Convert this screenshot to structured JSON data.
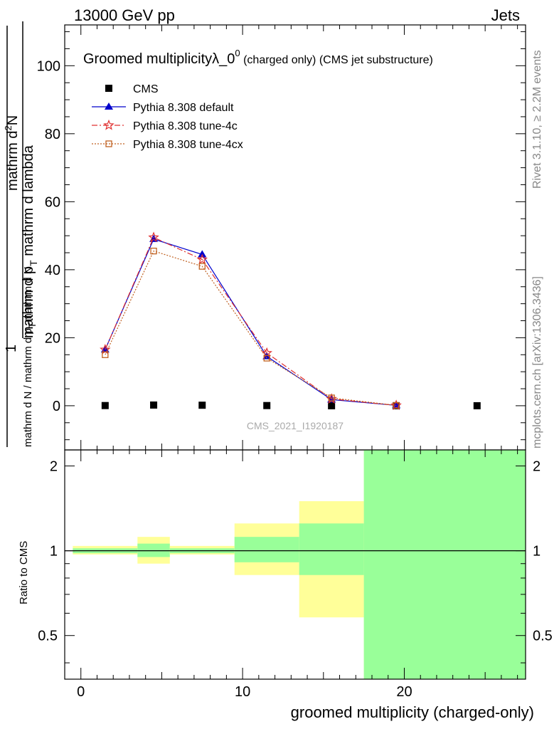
{
  "header": {
    "left": "13000 GeV pp",
    "right": "Jets"
  },
  "side_labels": {
    "top": "Rivet 3.1.10, ≥ 2.2M events",
    "bottom": "mcplots.cern.ch [arXiv:1306.3436]"
  },
  "watermark": "CMS_2021_I1920187",
  "chart_data": [
    {
      "type": "line",
      "title_main": "Groomed multiplicityλ_0",
      "title_sup": "0",
      "title_suffix": " (charged only) (CMS jet substructure)",
      "ylabel_num": "1",
      "ylabel_den": "mathrm d N / mathrm d p",
      "ylabel_den_sub": "T",
      "ylabel_den_end": "mathrm d N",
      "ylabel_2_top": "mathrm d",
      "ylabel_2_sup": "2",
      "ylabel_2_topend": "N",
      "ylabel_2_bot": "mathrm d p",
      "ylabel_2_bot_sub": "T",
      "ylabel_2_botend": " mathrm d lambda",
      "xlim": [
        -1,
        27.5
      ],
      "ylim": [
        -13,
        112
      ],
      "yticks": [
        0,
        20,
        40,
        60,
        80,
        100
      ],
      "series": [
        {
          "name": "CMS",
          "marker": "square",
          "color": "#000000",
          "x": [
            1.5,
            4.5,
            7.5,
            11.5,
            15.5,
            19.5,
            24.5
          ],
          "y": [
            0.05,
            0.2,
            0.15,
            0.05,
            0.0,
            0.0,
            0.0
          ]
        },
        {
          "name": "Pythia 8.308 default",
          "marker": "triangle",
          "color": "#0000cc",
          "dash": "",
          "x": [
            1.5,
            4.5,
            7.5,
            11.5,
            15.5,
            19.5
          ],
          "y": [
            16.5,
            49.0,
            44.5,
            14.5,
            1.8,
            0.1
          ]
        },
        {
          "name": "Pythia 8.308 tune-4c",
          "marker": "star",
          "color": "#e03030",
          "dash": "8,3,2,3",
          "x": [
            1.5,
            4.5,
            7.5,
            11.5,
            15.5,
            19.5
          ],
          "y": [
            16.5,
            49.5,
            43.0,
            15.5,
            2.0,
            0.1
          ]
        },
        {
          "name": "Pythia 8.308 tune-4cx",
          "marker": "open-square",
          "color": "#c06020",
          "dash": "2,2",
          "x": [
            1.5,
            4.5,
            7.5,
            11.5,
            15.5,
            19.5
          ],
          "y": [
            15.0,
            45.5,
            41.0,
            14.0,
            2.3,
            0.1
          ]
        }
      ]
    },
    {
      "type": "area",
      "ylabel": "Ratio to CMS",
      "xlabel": "groomed multiplicity (charged-only)",
      "xlim": [
        -1,
        27.5
      ],
      "ylim": [
        0.35,
        2.28
      ],
      "xticks": [
        0,
        10,
        20
      ],
      "yticks": [
        0.5,
        1,
        2
      ],
      "ytick_labels": [
        "0.5",
        "1",
        "2"
      ],
      "reference_line": 1,
      "bins": [
        {
          "lo": -0.5,
          "hi": 3.5,
          "total": [
            0.97,
            1.04
          ],
          "stat": [
            0.98,
            1.02
          ]
        },
        {
          "lo": 3.5,
          "hi": 5.5,
          "total": [
            0.9,
            1.12
          ],
          "stat": [
            0.95,
            1.06
          ]
        },
        {
          "lo": 5.5,
          "hi": 9.5,
          "total": [
            0.97,
            1.04
          ],
          "stat": [
            0.98,
            1.02
          ]
        },
        {
          "lo": 9.5,
          "hi": 13.5,
          "total": [
            0.82,
            1.25
          ],
          "stat": [
            0.91,
            1.12
          ]
        },
        {
          "lo": 13.5,
          "hi": 17.5,
          "total": [
            0.58,
            1.5
          ],
          "stat": [
            0.82,
            1.25
          ]
        },
        {
          "lo": 17.5,
          "hi": 27.5,
          "total": [
            0.35,
            2.28
          ],
          "stat": [
            0.35,
            2.28
          ]
        }
      ],
      "band_colors": {
        "total": "#ffff99",
        "stat": "#99ff99"
      }
    }
  ]
}
